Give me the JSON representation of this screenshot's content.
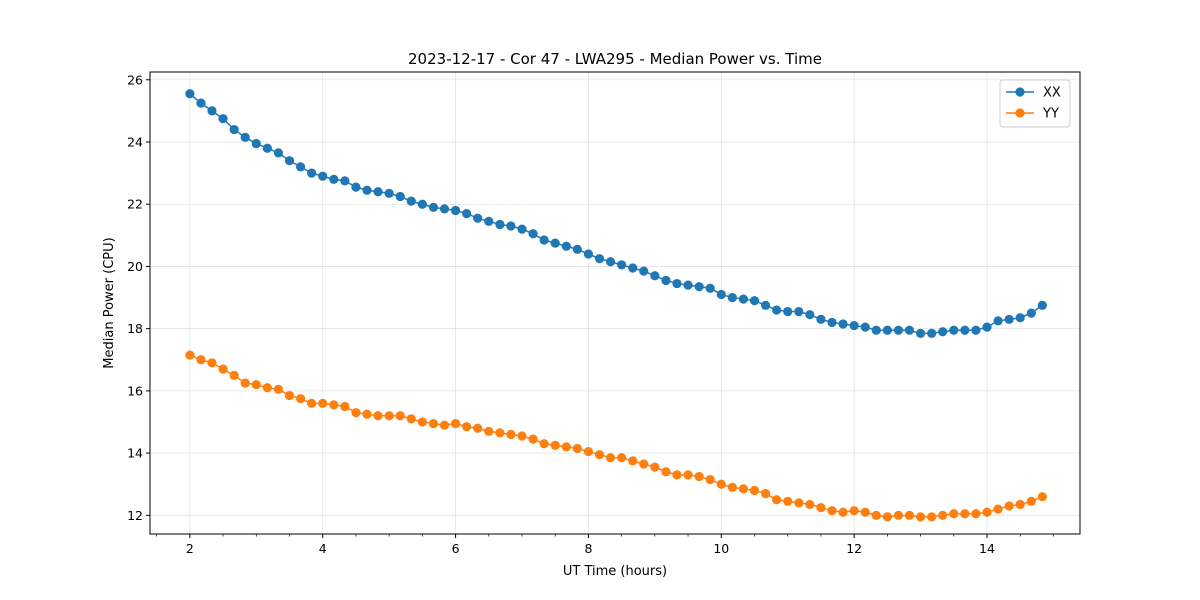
{
  "chart_data": {
    "type": "line",
    "title": "2023-12-17 - Cor 47 - LWA295 - Median Power vs. Time",
    "xlabel": "UT Time (hours)",
    "ylabel": "Median Power (CPU)",
    "xlim": [
      1.4,
      15.4
    ],
    "ylim": [
      11.4,
      26.25
    ],
    "xticks": [
      2,
      4,
      6,
      8,
      10,
      12,
      14
    ],
    "yticks": [
      12,
      14,
      16,
      18,
      20,
      22,
      24,
      26
    ],
    "grid": true,
    "legend_position": "top-right",
    "x": [
      2.0,
      2.167,
      2.333,
      2.5,
      2.667,
      2.833,
      3.0,
      3.167,
      3.333,
      3.5,
      3.667,
      3.833,
      4.0,
      4.167,
      4.333,
      4.5,
      4.667,
      4.833,
      5.0,
      5.167,
      5.333,
      5.5,
      5.667,
      5.833,
      6.0,
      6.167,
      6.333,
      6.5,
      6.667,
      6.833,
      7.0,
      7.167,
      7.333,
      7.5,
      7.667,
      7.833,
      8.0,
      8.167,
      8.333,
      8.5,
      8.667,
      8.833,
      9.0,
      9.167,
      9.333,
      9.5,
      9.667,
      9.833,
      10.0,
      10.167,
      10.333,
      10.5,
      10.667,
      10.833,
      11.0,
      11.167,
      11.333,
      11.5,
      11.667,
      11.833,
      12.0,
      12.167,
      12.333,
      12.5,
      12.667,
      12.833,
      13.0,
      13.167,
      13.333,
      13.5,
      13.667,
      13.833,
      14.0,
      14.167,
      14.333,
      14.5,
      14.667,
      14.833
    ],
    "series": [
      {
        "name": "XX",
        "color": "#1f77b4",
        "values": [
          25.55,
          25.25,
          25.0,
          24.75,
          24.4,
          24.15,
          23.95,
          23.8,
          23.65,
          23.4,
          23.2,
          23.0,
          22.9,
          22.8,
          22.75,
          22.55,
          22.45,
          22.4,
          22.35,
          22.25,
          22.1,
          22.0,
          21.9,
          21.85,
          21.8,
          21.7,
          21.55,
          21.45,
          21.35,
          21.3,
          21.2,
          21.05,
          20.85,
          20.75,
          20.65,
          20.55,
          20.4,
          20.25,
          20.15,
          20.05,
          19.95,
          19.85,
          19.7,
          19.55,
          19.45,
          19.4,
          19.35,
          19.3,
          19.1,
          19.0,
          18.95,
          18.9,
          18.75,
          18.6,
          18.55,
          18.55,
          18.45,
          18.3,
          18.2,
          18.15,
          18.1,
          18.05,
          17.95,
          17.95,
          17.95,
          17.95,
          17.85,
          17.85,
          17.9,
          17.95,
          17.95,
          17.95,
          18.05,
          18.25,
          18.3,
          18.35,
          18.5,
          18.75
        ]
      },
      {
        "name": "YY",
        "color": "#ff7f0e",
        "values": [
          17.15,
          17.0,
          16.9,
          16.7,
          16.5,
          16.25,
          16.2,
          16.1,
          16.05,
          15.85,
          15.75,
          15.6,
          15.6,
          15.55,
          15.5,
          15.3,
          15.25,
          15.2,
          15.2,
          15.2,
          15.1,
          15.0,
          14.95,
          14.9,
          14.95,
          14.85,
          14.8,
          14.7,
          14.65,
          14.6,
          14.55,
          14.45,
          14.3,
          14.25,
          14.2,
          14.15,
          14.05,
          13.95,
          13.85,
          13.85,
          13.75,
          13.65,
          13.55,
          13.4,
          13.3,
          13.3,
          13.25,
          13.15,
          13.0,
          12.9,
          12.85,
          12.8,
          12.7,
          12.5,
          12.45,
          12.4,
          12.35,
          12.25,
          12.15,
          12.1,
          12.15,
          12.1,
          12.0,
          11.95,
          12.0,
          12.0,
          11.95,
          11.95,
          12.0,
          12.05,
          12.05,
          12.05,
          12.1,
          12.2,
          12.3,
          12.35,
          12.45,
          12.6
        ]
      }
    ]
  }
}
